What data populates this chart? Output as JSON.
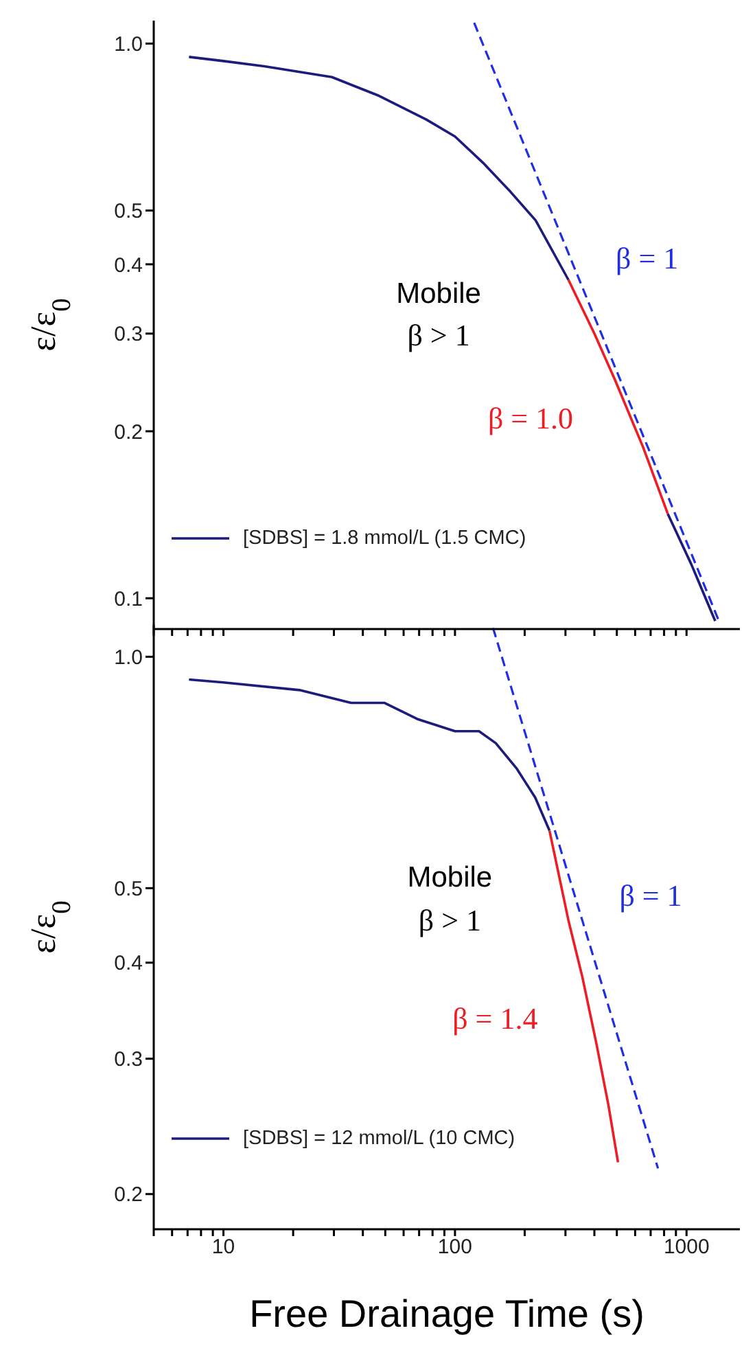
{
  "chart_data": [
    {
      "type": "line",
      "ylabel": "ε/ε$_{0}$",
      "log": "xy",
      "legend": "bottom left",
      "tick_labels": "y",
      "xlim": [
        5,
        1700
      ],
      "ylim": [
        0.088,
        1.1
      ],
      "xticks": [
        {
          "value": 5,
          "label": null
        },
        {
          "value": 6,
          "label": null
        },
        {
          "value": 7,
          "label": null
        },
        {
          "value": 8,
          "label": null
        },
        {
          "value": 9,
          "label": null
        },
        10,
        {
          "value": 20,
          "label": null
        },
        {
          "value": 30,
          "label": null
        },
        {
          "value": 40,
          "label": null
        },
        {
          "value": 50,
          "label": null
        },
        {
          "value": 60,
          "label": null
        },
        {
          "value": 70,
          "label": null
        },
        {
          "value": 80,
          "label": null
        },
        {
          "value": 90,
          "label": null
        },
        100,
        {
          "value": 200,
          "label": null
        },
        {
          "value": 300,
          "label": null
        },
        {
          "value": 400,
          "label": null
        },
        {
          "value": 500,
          "label": null
        },
        {
          "value": 600,
          "label": null
        },
        {
          "value": 700,
          "label": null
        },
        {
          "value": 800,
          "label": null
        },
        {
          "value": 900,
          "label": null
        },
        1000
      ],
      "yticks": [
        0.1,
        0.2,
        0.3,
        0.4,
        0.5,
        {
          "value": 1,
          "label": "1.0"
        }
      ],
      "series": [
        {
          "name": "[SDBS] = 1.8 mmol/L (1.5 CMC)",
          "color": "#1c1c7c",
          "x": [
            7.1,
            10,
            15,
            29.4,
            47,
            75,
            100,
            132,
            174,
            223,
            309,
            490,
            830,
            1050,
            1330
          ],
          "values": [
            0.946,
            0.93,
            0.91,
            0.87,
            0.805,
            0.73,
            0.68,
            0.61,
            0.54,
            0.48,
            0.375,
            null,
            0.142,
            0.115,
            0.091
          ]
        },
        {
          "color": "#ee1c24",
          "x": [
            309,
            400,
            490,
            650,
            830
          ],
          "values": [
            0.375,
            0.3,
            0.248,
            0.187,
            0.142
          ]
        },
        {
          "color": "#1f2ee6",
          "line_style": "dashed",
          "x": [
            121,
            1380
          ],
          "values": [
            1.09,
            0.091
          ]
        }
      ],
      "annotations": [
        "Mobile",
        "β > 1",
        "β = 1.0",
        "β = 1"
      ]
    },
    {
      "type": "line",
      "xlabel": "Free Drainage Time (s)",
      "ylabel": "ε/ε$_{0}$",
      "log": "xy",
      "legend": "bottom left",
      "xlim": [
        5,
        1700
      ],
      "ylim": [
        0.18,
        1.1
      ],
      "xticks": [
        {
          "value": 5,
          "label": null
        },
        {
          "value": 6,
          "label": null
        },
        {
          "value": 7,
          "label": null
        },
        {
          "value": 8,
          "label": null
        },
        {
          "value": 9,
          "label": null
        },
        10,
        {
          "value": 20,
          "label": null
        },
        {
          "value": 30,
          "label": null
        },
        {
          "value": 40,
          "label": null
        },
        {
          "value": 50,
          "label": null
        },
        {
          "value": 60,
          "label": null
        },
        {
          "value": 70,
          "label": null
        },
        {
          "value": 80,
          "label": null
        },
        {
          "value": 90,
          "label": null
        },
        100,
        {
          "value": 200,
          "label": null
        },
        {
          "value": 300,
          "label": null
        },
        {
          "value": 400,
          "label": null
        },
        {
          "value": 500,
          "label": null
        },
        {
          "value": 600,
          "label": null
        },
        {
          "value": 700,
          "label": null
        },
        {
          "value": 800,
          "label": null
        },
        {
          "value": 900,
          "label": null
        },
        1000
      ],
      "yticks": [
        0.2,
        0.3,
        0.4,
        0.5,
        {
          "value": 1,
          "label": "1.0"
        }
      ],
      "series": [
        {
          "name": "[SDBS] = 12 mmol/L (10 CMC)",
          "color": "#1c1c7c",
          "x": [
            7.1,
            10,
            21.3,
            35.6,
            49.5,
            68.7,
            100,
            127,
            150,
            185,
            222,
            256
          ],
          "values": [
            0.934,
            0.926,
            0.905,
            0.871,
            0.871,
            0.83,
            0.8,
            0.8,
            0.772,
            0.715,
            0.656,
            0.594
          ]
        },
        {
          "color": "#ee1c24",
          "x": [
            256,
            309,
            355,
            408,
            460,
            506
          ],
          "values": [
            0.594,
            0.454,
            0.383,
            0.314,
            0.261,
            0.22
          ]
        },
        {
          "color": "#1f2ee6",
          "line_style": "dashed",
          "x": [
            146,
            753
          ],
          "values": [
            1.09,
            0.216
          ]
        }
      ],
      "annotations": [
        "Mobile",
        "β > 1",
        "β = 1.4",
        "β = 1"
      ]
    }
  ]
}
